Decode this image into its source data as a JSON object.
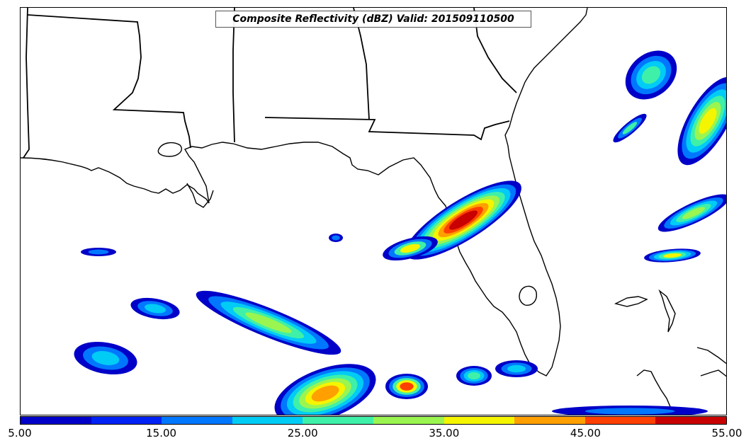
{
  "title": "Composite Reflectivity (dBZ) Valid: 201509110500",
  "colorbar": {
    "min": 5,
    "max": 55,
    "tick_labels": [
      "5.00",
      "15.00",
      "25.00",
      "35.00",
      "45.00",
      "55.00"
    ],
    "colors": [
      "#0000c8",
      "#0022f5",
      "#0077ff",
      "#00ccf5",
      "#3ff0a8",
      "#9bf550",
      "#f5f500",
      "#ffa000",
      "#ff4000",
      "#c80000"
    ]
  },
  "colors": {
    "land_outline": "#000000",
    "background": "#ffffff"
  }
}
